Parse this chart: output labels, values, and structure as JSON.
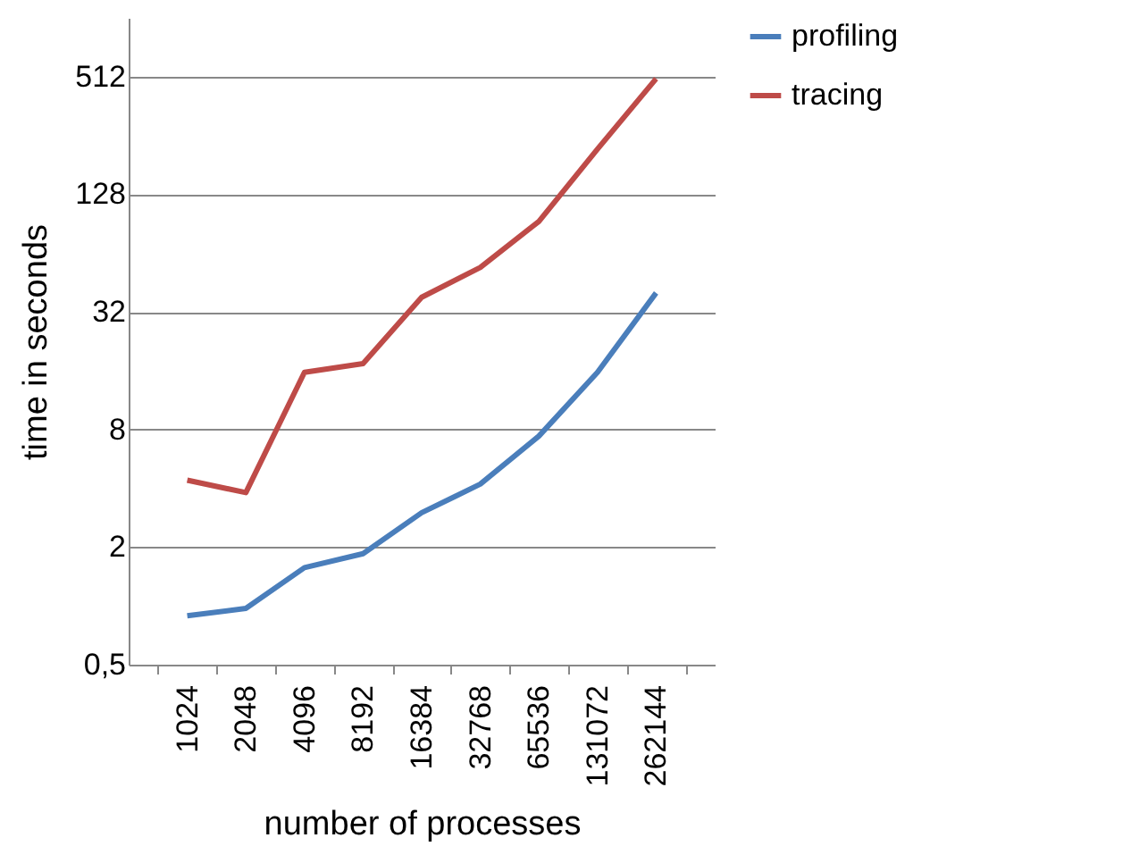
{
  "chart_data": {
    "type": "line",
    "xlabel": "number of processes",
    "ylabel": "time in seconds",
    "categories": [
      "1024",
      "2048",
      "4096",
      "8192",
      "16384",
      "32768",
      "65536",
      "131072",
      "262144"
    ],
    "series": [
      {
        "name": "profiling",
        "color": "#4a7ebb",
        "values": [
          0.89,
          0.97,
          1.57,
          1.85,
          3.0,
          4.2,
          7.4,
          15.7,
          40
        ]
      },
      {
        "name": "tracing",
        "color": "#be4b48",
        "values": [
          4.4,
          3.8,
          15.7,
          17.4,
          38,
          54,
          93,
          218,
          500
        ]
      }
    ],
    "log": true,
    "ylim": [
      0.5,
      1024
    ],
    "yticks": [
      {
        "value": 0.5,
        "label": "0,5"
      },
      2,
      8,
      32,
      128,
      512
    ],
    "grid": "y",
    "legend": "right",
    "marker": "none"
  }
}
